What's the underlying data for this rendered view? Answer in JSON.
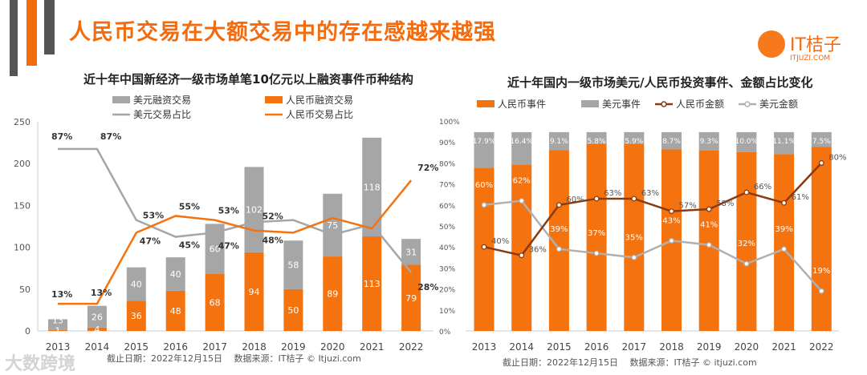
{
  "title": "人民币交易在大额交易中的存在感越来越强",
  "logo": {
    "name": "IT桔子",
    "url": "ITJUZI.COM"
  },
  "watermark": "大数跨境",
  "colors": {
    "orange": "#f5730f",
    "gray": "#a6a6a6",
    "brown": "#8b3a0f",
    "lightgray": "#b0b0b0"
  },
  "chart_data": [
    {
      "type": "bar",
      "title": "近十年中国新经济一级市场单笔10亿元以上融资事件币种结构",
      "categories": [
        "2013",
        "2014",
        "2015",
        "2016",
        "2017",
        "2018",
        "2019",
        "2020",
        "2021",
        "2022"
      ],
      "ylim": [
        0,
        250
      ],
      "yticks": [
        "0",
        "50",
        "100",
        "150",
        "200",
        "250"
      ],
      "series": [
        {
          "name": "人民币融资交易",
          "type": "bar",
          "values": [
            1,
            4,
            36,
            48,
            68,
            94,
            50,
            89,
            113,
            79
          ]
        },
        {
          "name": "美元融资交易",
          "type": "bar",
          "values": [
            13,
            26,
            40,
            40,
            60,
            102,
            58,
            75,
            118,
            31
          ]
        },
        {
          "name": "美元交易占比",
          "type": "line",
          "values": [
            87,
            87,
            53,
            45,
            47,
            52,
            53,
            46,
            51,
            28
          ],
          "labels": [
            "87%",
            "87%",
            "53%",
            "45%",
            "47%",
            "52%",
            "",
            "",
            "",
            "28%"
          ]
        },
        {
          "name": "人民币交易占比",
          "type": "line",
          "values": [
            13,
            13,
            47,
            55,
            53,
            48,
            47,
            54,
            49,
            72
          ],
          "labels": [
            "13%",
            "13%",
            "47%",
            "55%",
            "53%",
            "48%",
            "",
            "",
            "",
            "72%"
          ]
        }
      ],
      "footer": "截止日期：2022年12月15日　 数据来源：IT桔子 © Itjuzi.com"
    },
    {
      "type": "bar",
      "title": "近十年国内一级市场美元/人民币投资事件、金额占比变化",
      "categories": [
        "2013",
        "2014",
        "2015",
        "2016",
        "2017",
        "2018",
        "2019",
        "2020",
        "2021",
        "2022"
      ],
      "ylim": [
        0,
        100
      ],
      "yticks": [
        "0%",
        "10%",
        "20%",
        "30%",
        "40%",
        "50%",
        "60%",
        "70%",
        "80%",
        "90%",
        "100%"
      ],
      "series": [
        {
          "name": "人民币事件",
          "type": "bar",
          "values": [
            82.1,
            83.6,
            90.9,
            94.2,
            94.1,
            91.3,
            90.7,
            90.0,
            88.9,
            92.5
          ]
        },
        {
          "name": "美元事件",
          "type": "bar",
          "values": [
            17.9,
            16.4,
            9.1,
            5.8,
            5.9,
            8.7,
            9.3,
            10.0,
            11.1,
            7.5
          ],
          "labels": [
            "17.9%",
            "16.4%",
            "9.1%",
            "5.8%",
            "5.9%",
            "8.7%",
            "9.3%",
            "10.0%",
            "11.1%",
            "7.5%"
          ]
        },
        {
          "name": "人民币金额",
          "type": "line",
          "values": [
            40,
            36,
            60,
            63,
            63,
            57,
            58,
            66,
            61,
            80
          ],
          "labels": [
            "40%",
            "36%",
            "60%",
            "63%",
            "63%",
            "57%",
            "58%",
            "66%",
            "61%",
            "80%"
          ]
        },
        {
          "name": "美元金额",
          "type": "line",
          "values": [
            60,
            62,
            39,
            37,
            35,
            43,
            41,
            32,
            39,
            19
          ],
          "labels": [
            "60%",
            "62%",
            "39%",
            "37%",
            "35%",
            "43%",
            "41%",
            "32%",
            "39%",
            "19%"
          ]
        }
      ],
      "footer": "截止日期：2022年12月15日　 数据来源：IT桔子 © itjuzi.com"
    }
  ]
}
